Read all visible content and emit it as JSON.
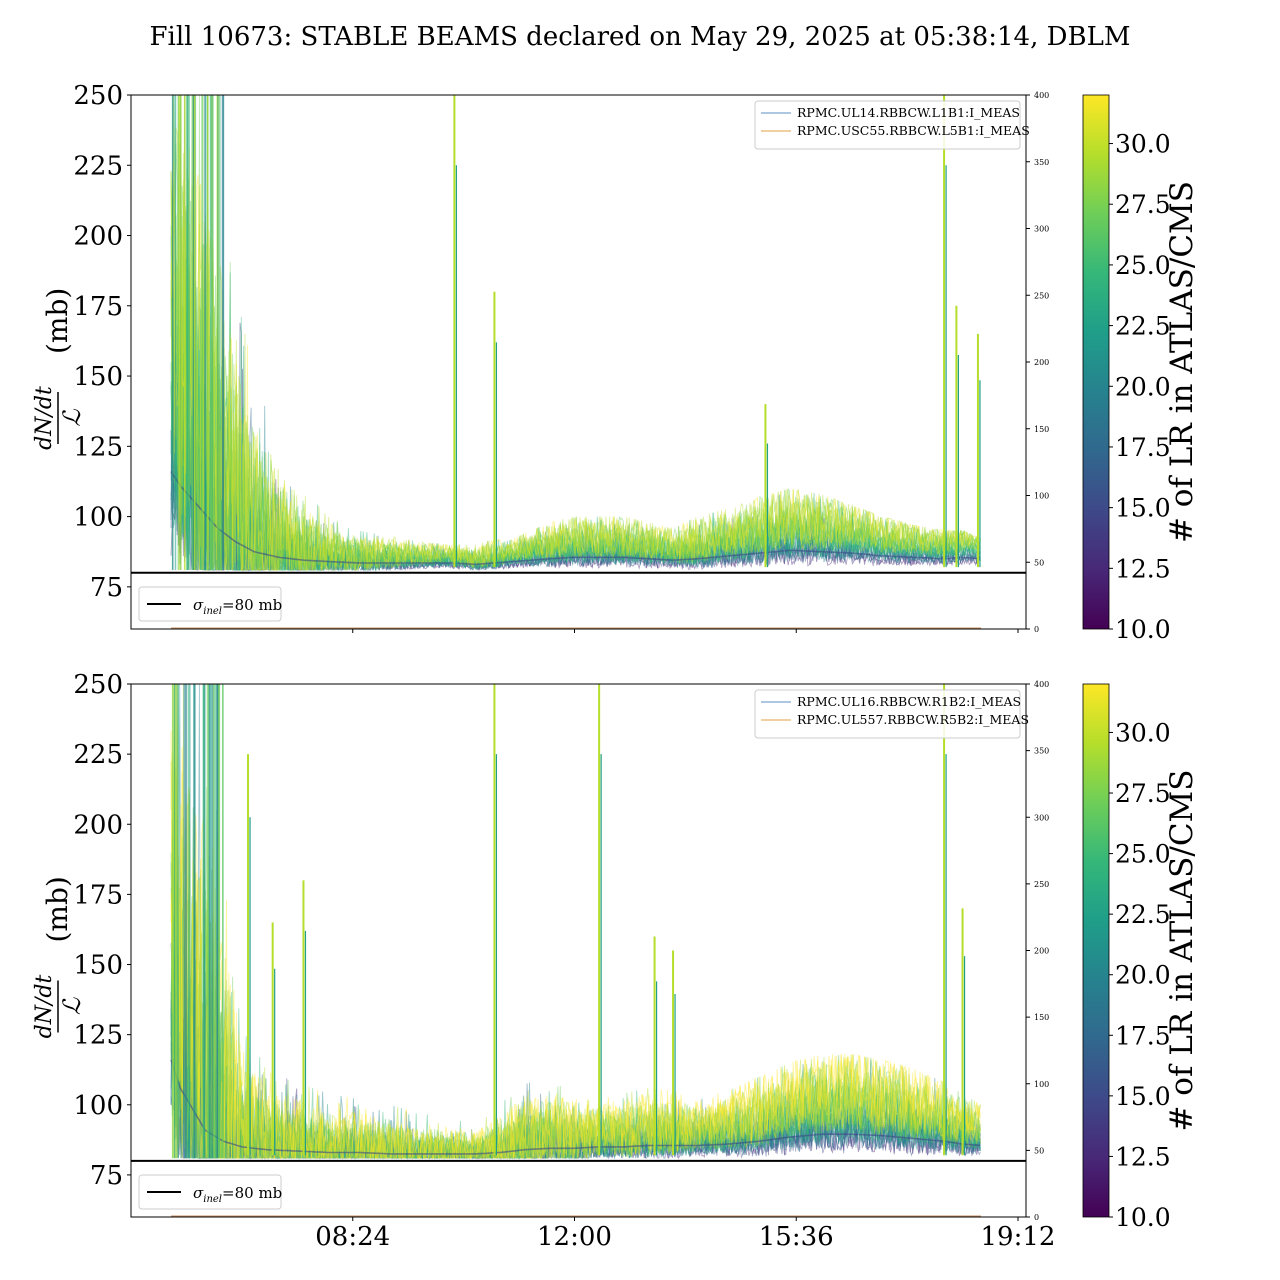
{
  "title": "Fill 10673: STABLE BEAMS declared on May 29, 2025 at 05:38:14, DBLM",
  "colorbar": {
    "label": "# of LR in ATLAS/CMS",
    "ticks": [
      "10.0",
      "12.5",
      "15.0",
      "17.5",
      "20.0",
      "22.5",
      "25.0",
      "27.5",
      "30.0"
    ],
    "range": [
      10,
      32
    ],
    "colormap": [
      "#440154",
      "#482878",
      "#3e4989",
      "#31688e",
      "#26828e",
      "#1f9e89",
      "#35b779",
      "#6ece58",
      "#b5de2b",
      "#fde725"
    ]
  },
  "reference_line": {
    "label_sigma": "σ",
    "label_sub": "inel",
    "label_rest": "=80 mb",
    "value": 80,
    "color": "#000000"
  },
  "x_ticks": [
    "08:24",
    "12:00",
    "15:36",
    "19:12"
  ],
  "chart_data": [
    {
      "type": "line",
      "ylabel_numer": "dN/dt",
      "ylabel_denom": "ℒ",
      "ylabel_unit": "(mb)",
      "ylim": [
        60,
        250
      ],
      "yticks": [
        "75",
        "100",
        "125",
        "150",
        "175",
        "200",
        "225",
        "250"
      ],
      "y2lim": [
        0,
        400
      ],
      "y2ticks": [
        "0",
        "50",
        "100",
        "150",
        "200",
        "250",
        "300",
        "350",
        "400"
      ],
      "xlim_hours": [
        4.8,
        19.33
      ],
      "series": [
        {
          "name": "RPMC.UL14.RBBCW.L1B1:I_MEAS",
          "color": "#5b8fc7"
        },
        {
          "name": "RPMC.USC55.RBBCW.L5B1:I_MEAS",
          "color": "#e0a040"
        }
      ],
      "envelope": {
        "x": [
          5.45,
          5.6,
          5.8,
          6.0,
          6.2,
          6.5,
          6.8,
          7.2,
          7.6,
          8.0,
          8.5,
          9.0,
          9.5,
          10.0,
          10.4,
          10.7,
          11.0,
          11.3,
          11.6,
          12.0,
          12.4,
          12.8,
          13.2,
          13.6,
          14.0,
          14.5,
          15.0,
          15.5,
          16.0,
          16.5,
          17.0,
          17.5,
          18.0,
          18.3,
          18.6
        ],
        "upper": [
          250,
          250,
          250,
          250,
          215,
          180,
          150,
          125,
          110,
          100,
          95,
          93,
          91,
          90,
          90,
          92,
          92,
          95,
          98,
          100,
          100,
          100,
          98,
          96,
          100,
          103,
          107,
          110,
          108,
          104,
          100,
          97,
          95,
          95,
          92
        ],
        "mid": [
          150,
          140,
          130,
          120,
          110,
          100,
          93,
          89,
          87,
          86,
          85,
          85,
          85,
          85,
          84,
          85,
          86,
          87,
          88,
          89,
          89,
          89,
          88,
          87,
          88,
          90,
          92,
          94,
          93,
          92,
          90,
          89,
          88,
          89,
          88
        ]
      },
      "spikes": [
        {
          "x": 10.05,
          "y": 250
        },
        {
          "x": 10.7,
          "y": 180
        },
        {
          "x": 15.1,
          "y": 140
        },
        {
          "x": 18.0,
          "y": 250
        },
        {
          "x": 18.2,
          "y": 175
        },
        {
          "x": 18.55,
          "y": 165
        }
      ]
    },
    {
      "type": "line",
      "ylabel_numer": "dN/dt",
      "ylabel_denom": "ℒ",
      "ylabel_unit": "(mb)",
      "ylim": [
        60,
        250
      ],
      "yticks": [
        "75",
        "100",
        "125",
        "150",
        "175",
        "200",
        "225",
        "250"
      ],
      "y2lim": [
        0,
        400
      ],
      "y2ticks": [
        "0",
        "50",
        "100",
        "150",
        "200",
        "250",
        "300",
        "350",
        "400"
      ],
      "xlim_hours": [
        4.8,
        19.33
      ],
      "series": [
        {
          "name": "RPMC.UL16.RBBCW.R1B2:I_MEAS",
          "color": "#5b8fc7"
        },
        {
          "name": "RPMC.UL557.RBBCW.R5B2:I_MEAS",
          "color": "#e0a040"
        }
      ],
      "envelope": {
        "x": [
          5.45,
          5.6,
          5.8,
          6.0,
          6.3,
          6.6,
          7.0,
          7.5,
          8.0,
          8.5,
          9.0,
          9.5,
          10.0,
          10.4,
          10.8,
          11.2,
          11.6,
          12.0,
          12.4,
          12.8,
          13.2,
          13.6,
          14.0,
          14.5,
          15.0,
          15.5,
          16.0,
          16.5,
          17.0,
          17.5,
          18.0,
          18.3,
          18.6
        ],
        "upper": [
          250,
          250,
          250,
          250,
          200,
          130,
          112,
          108,
          104,
          102,
          100,
          97,
          95,
          93,
          100,
          110,
          108,
          105,
          102,
          104,
          106,
          105,
          102,
          105,
          110,
          115,
          118,
          118,
          116,
          113,
          108,
          104,
          100
        ],
        "mid": [
          150,
          130,
          115,
          100,
          92,
          88,
          86,
          85,
          84,
          84,
          83,
          83,
          83,
          83,
          84,
          86,
          87,
          87,
          88,
          88,
          89,
          89,
          89,
          90,
          92,
          95,
          97,
          97,
          96,
          94,
          92,
          90,
          89
        ]
      },
      "spikes": [
        {
          "x": 6.7,
          "y": 225
        },
        {
          "x": 7.1,
          "y": 165
        },
        {
          "x": 7.6,
          "y": 180
        },
        {
          "x": 10.7,
          "y": 250
        },
        {
          "x": 12.4,
          "y": 250
        },
        {
          "x": 13.3,
          "y": 160
        },
        {
          "x": 13.6,
          "y": 155
        },
        {
          "x": 18.0,
          "y": 250
        },
        {
          "x": 18.3,
          "y": 170
        }
      ]
    }
  ]
}
